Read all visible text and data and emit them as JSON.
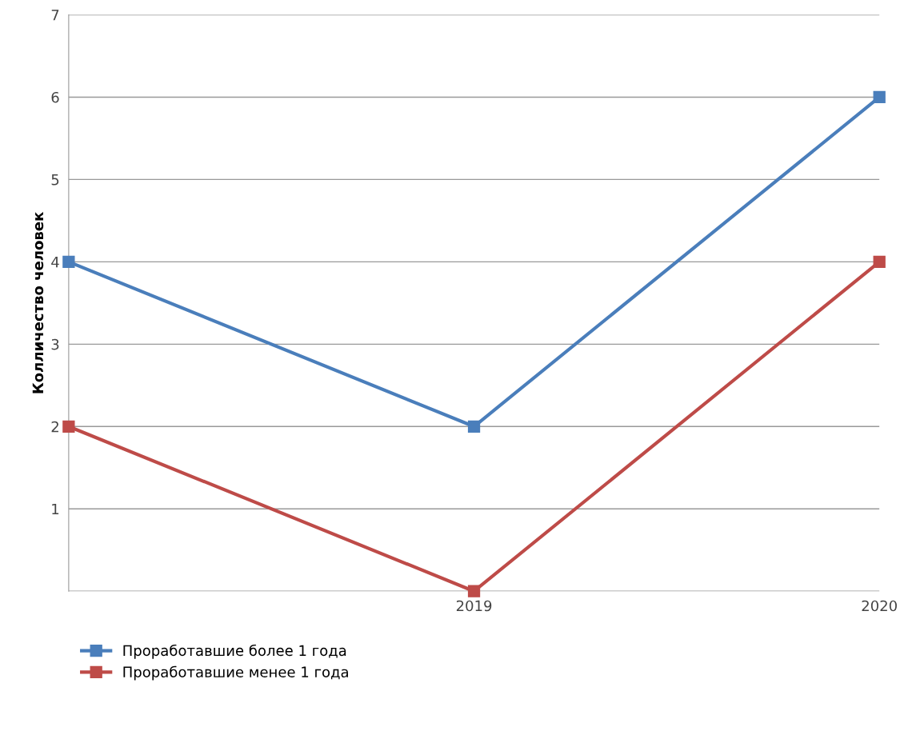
{
  "chart_data": {
    "type": "line",
    "ylabel": "Колличество человек",
    "categories": [
      null,
      "2019",
      "2020"
    ],
    "series": [
      {
        "name": "Проработавшие более 1 года",
        "color": "#4a7ebb",
        "values": [
          4,
          2,
          6
        ]
      },
      {
        "name": "Проработавшие менее 1 года",
        "color": "#be4b48",
        "values": [
          2,
          0,
          4
        ]
      }
    ],
    "ylim": [
      0,
      7
    ],
    "yticks": [
      {
        "value": 0,
        "label": null
      },
      1,
      2,
      3,
      4,
      5,
      6,
      7
    ],
    "grid": "y",
    "legend": "bottom left",
    "marker": "square",
    "line_style": "solid"
  }
}
